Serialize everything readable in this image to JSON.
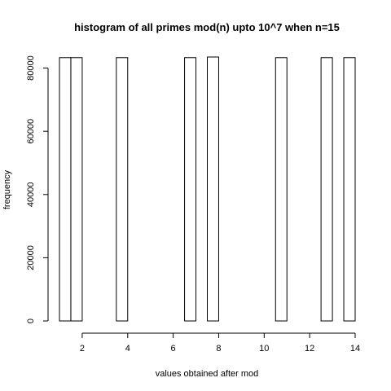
{
  "chart_data": {
    "type": "bar",
    "title": "histogram of all primes mod(n) upto 10^7 when n=15",
    "xlabel": "values obtained after mod",
    "ylabel": "frequency",
    "xlim": [
      1,
      14
    ],
    "ylim": [
      0,
      83500
    ],
    "x_ticks": [
      2,
      4,
      6,
      8,
      10,
      12,
      14
    ],
    "y_ticks": [
      0,
      20000,
      40000,
      60000,
      80000
    ],
    "bin_width": 0.5,
    "bins": [
      {
        "x0": 1.0,
        "x1": 1.5,
        "value": 83300
      },
      {
        "x0": 1.5,
        "x1": 2.0,
        "value": 83300
      },
      {
        "x0": 3.5,
        "x1": 4.0,
        "value": 83300
      },
      {
        "x0": 6.5,
        "x1": 7.0,
        "value": 83300
      },
      {
        "x0": 7.5,
        "x1": 8.0,
        "value": 83500
      },
      {
        "x0": 10.5,
        "x1": 11.0,
        "value": 83300
      },
      {
        "x0": 12.5,
        "x1": 13.0,
        "value": 83300
      },
      {
        "x0": 13.5,
        "x1": 14.0,
        "value": 83300
      }
    ]
  }
}
